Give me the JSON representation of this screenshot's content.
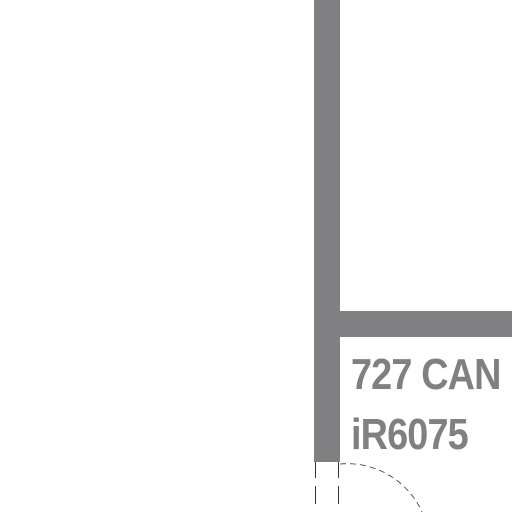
{
  "room": {
    "number": "727",
    "name_line_1": "727 CAN",
    "name_line_2": "iR6075"
  },
  "colors": {
    "wall": "#808083",
    "label_text": "#808083",
    "door_line": "#333333",
    "background": "#ffffff"
  }
}
